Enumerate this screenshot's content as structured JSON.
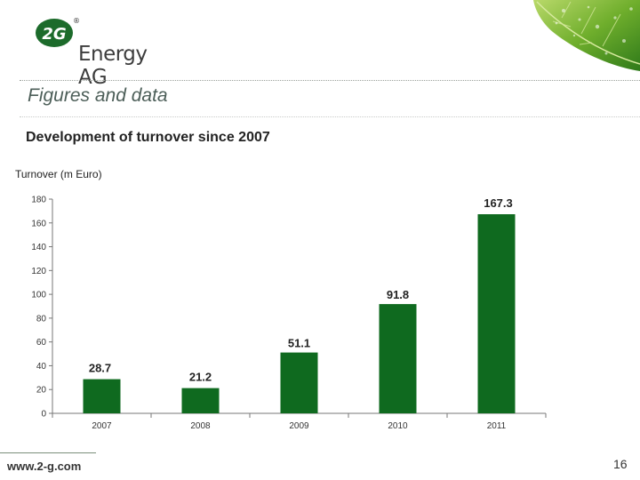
{
  "brand": {
    "badge_text": "2G",
    "name": "Energy AG",
    "registered_mark": "®"
  },
  "title": "Figures and data",
  "subtitle": "Development of turnover since 2007",
  "colors": {
    "bar": "#0f6a1f",
    "axis": "#777777",
    "title": "#4c5e58"
  },
  "chart_data": {
    "type": "bar",
    "title": "Development of turnover since 2007",
    "ylabel": "Turnover (m Euro)",
    "xlabel": "",
    "categories": [
      "2007",
      "2008",
      "2009",
      "2010",
      "2011"
    ],
    "values": [
      28.7,
      21.2,
      51.1,
      91.8,
      167.3
    ],
    "value_labels": [
      "28.7",
      "21.2",
      "51.1",
      "91.8",
      "167.3"
    ],
    "ylim": [
      0,
      180
    ],
    "yticks": [
      0,
      20,
      40,
      60,
      80,
      100,
      120,
      140,
      160,
      180
    ],
    "grid": false,
    "legend": "none"
  },
  "footer": {
    "url": "www.2-g.com",
    "page": "16"
  }
}
